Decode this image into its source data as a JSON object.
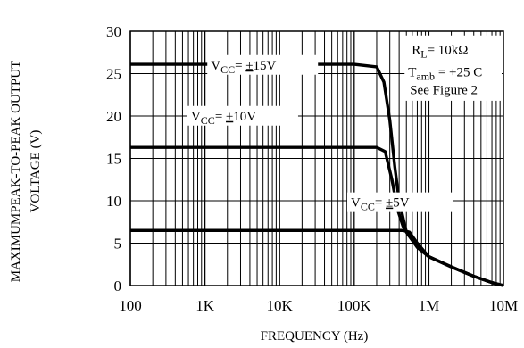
{
  "chart_data": {
    "type": "line",
    "x_scale": "log",
    "xlim": [
      100,
      10000000
    ],
    "ylim": [
      0,
      30
    ],
    "grid": true,
    "x_ticks": [
      {
        "value": 100,
        "label": "100"
      },
      {
        "value": 1000,
        "label": "1K"
      },
      {
        "value": 10000,
        "label": "10K"
      },
      {
        "value": 100000,
        "label": "100K"
      },
      {
        "value": 1000000,
        "label": "1M"
      },
      {
        "value": 10000000,
        "label": "10M"
      }
    ],
    "y_ticks": [
      {
        "value": 0,
        "label": "0"
      },
      {
        "value": 5,
        "label": "5"
      },
      {
        "value": 10,
        "label": "10"
      },
      {
        "value": 15,
        "label": "15"
      },
      {
        "value": 20,
        "label": "20"
      },
      {
        "value": 25,
        "label": "25"
      },
      {
        "value": 30,
        "label": "30"
      }
    ],
    "xlabel": "FREQUENCY (Hz)",
    "ylabel_lines": [
      "MAXIMUMPEAK-TO-PEAK  OUTPUT",
      "VOLTAGE (V)"
    ],
    "series": [
      {
        "name": "VCC = ±15V",
        "label": {
          "main": "V",
          "sub": "CC",
          "rest": "= ",
          "pm": "±",
          "val": "15V"
        },
        "points": [
          [
            100,
            26.1
          ],
          [
            100000,
            26.1
          ],
          [
            200000,
            25.8
          ],
          [
            250000,
            24.0
          ],
          [
            300000,
            19.5
          ],
          [
            350000,
            14.0
          ],
          [
            400000,
            10.0
          ],
          [
            500000,
            6.3
          ],
          [
            700000,
            4.5
          ],
          [
            1000000,
            3.4
          ],
          [
            2000000,
            2.2
          ],
          [
            4000000,
            1.1
          ],
          [
            7000000,
            0.35
          ],
          [
            10000000,
            0.0
          ]
        ]
      },
      {
        "name": "VCC = ±10V",
        "label": {
          "main": "V",
          "sub": "CC",
          "rest": "= ",
          "pm": "±",
          "val": "10V"
        },
        "points": [
          [
            100,
            16.3
          ],
          [
            200000,
            16.3
          ],
          [
            260000,
            15.8
          ],
          [
            320000,
            12.5
          ],
          [
            380000,
            9.0
          ],
          [
            450000,
            7.0
          ],
          [
            550000,
            5.8
          ],
          [
            700000,
            4.6
          ],
          [
            1000000,
            3.4
          ],
          [
            2000000,
            2.2
          ],
          [
            4000000,
            1.1
          ],
          [
            7000000,
            0.35
          ],
          [
            10000000,
            0.0
          ]
        ]
      },
      {
        "name": "VCC = ±5V",
        "label": {
          "main": "V",
          "sub": "CC",
          "rest": "= ",
          "pm": "±",
          "val": "5V"
        },
        "points": [
          [
            100,
            6.5
          ],
          [
            450000,
            6.5
          ],
          [
            550000,
            6.3
          ],
          [
            700000,
            5.0
          ],
          [
            1000000,
            3.4
          ],
          [
            2000000,
            2.2
          ],
          [
            4000000,
            1.1
          ],
          [
            7000000,
            0.35
          ],
          [
            10000000,
            0.0
          ]
        ]
      }
    ],
    "annotations": {
      "rl": {
        "main": "R",
        "sub": "L",
        "rest": "= 10kΩ"
      },
      "tamb": {
        "main": "T",
        "sub": "amb",
        "rest": " = +25 C"
      },
      "figure": "See Figure 2"
    }
  }
}
